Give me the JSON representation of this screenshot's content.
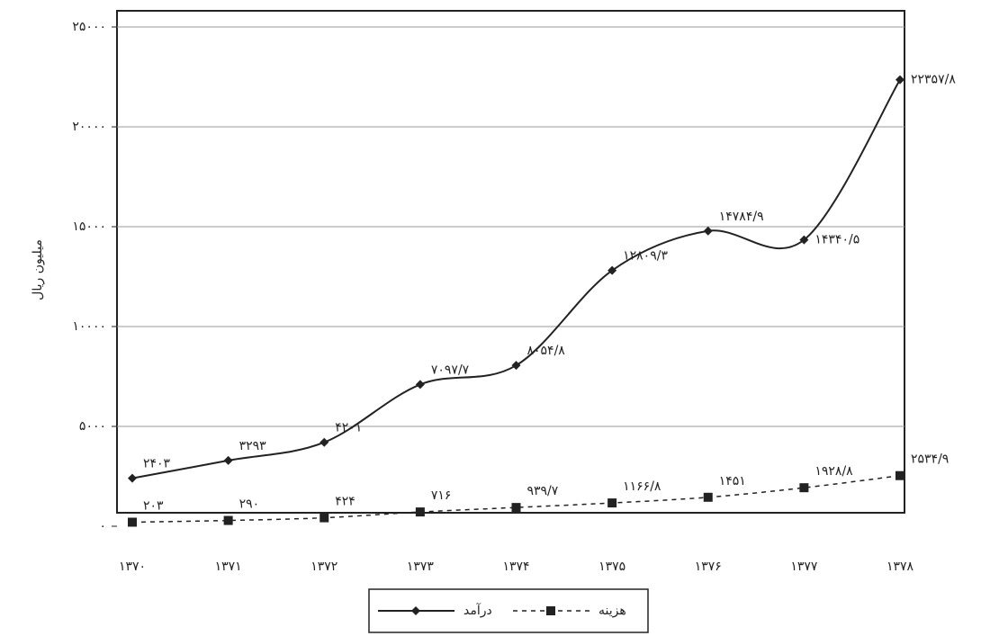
{
  "chart_data": {
    "type": "line",
    "y_label": "میلیون ریال",
    "categories": [
      "۱۳۷۰",
      "۱۳۷۱",
      "۱۳۷۲",
      "۱۳۷۳",
      "۱۳۷۴",
      "۱۳۷۵",
      "۱۳۷۶",
      "۱۳۷۷",
      "۱۳۷۸"
    ],
    "series": [
      {
        "name": "درآمد",
        "color": "#222222",
        "marker": "diamond",
        "dash": false,
        "values": [
          2403,
          3293,
          4201,
          7097.7,
          8054.8,
          12809.3,
          14784.9,
          14340.5,
          22357.8
        ],
        "value_labels": [
          "۲۴۰۳",
          "۳۲۹۳",
          "۴۲۰۱",
          "۷۰۹۷/۷",
          "۸۰۵۴/۸",
          "۱۲۸۰۹/۳",
          "۱۴۷۸۴/۹",
          "۱۴۳۴۰/۵",
          "۲۲۳۵۷/۸"
        ]
      },
      {
        "name": "هزینه",
        "color": "#222222",
        "marker": "square",
        "dash": true,
        "values": [
          203,
          290,
          424,
          716,
          939.7,
          1166.8,
          1451,
          1928.8,
          2534.9
        ],
        "value_labels": [
          "۲۰۳",
          "۲۹۰",
          "۴۲۴",
          "۷۱۶",
          "۹۳۹/۷",
          "۱۱۶۶/۸",
          "۱۴۵۱",
          "۱۹۲۸/۸",
          "۲۵۳۴/۹"
        ]
      }
    ],
    "ylim": [
      0,
      25000
    ],
    "yticks": [
      {
        "value": 0,
        "label": "۰"
      },
      {
        "value": 5000,
        "label": "۵۰۰۰"
      },
      {
        "value": 10000,
        "label": "۱۰۰۰۰"
      },
      {
        "value": 15000,
        "label": "۱۵۰۰۰"
      },
      {
        "value": 20000,
        "label": "۲۰۰۰۰"
      },
      {
        "value": 25000,
        "label": "۲۵۰۰۰"
      }
    ],
    "grid": true,
    "legend": "bottom"
  }
}
